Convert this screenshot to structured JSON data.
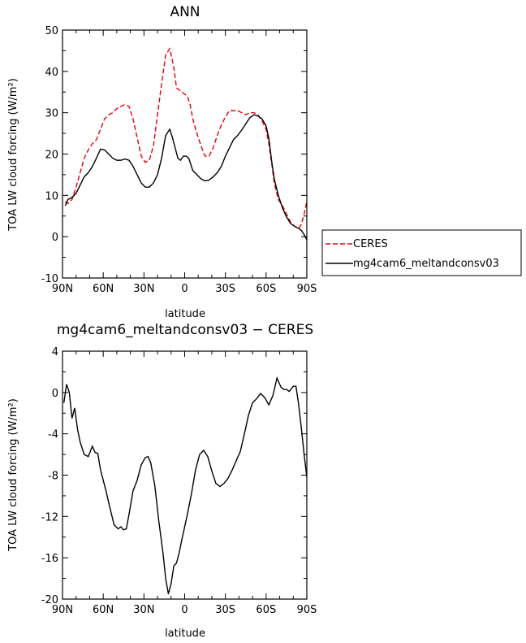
{
  "chart_data": [
    {
      "type": "line",
      "title": "ANN",
      "xlabel": "latitude",
      "ylabel": "TOA LW cloud forcing (W/m²)",
      "xlim": [
        90,
        -90
      ],
      "ylim": [
        -10,
        50
      ],
      "x_tick_labels": [
        "90N",
        "60N",
        "30N",
        "0",
        "30S",
        "60S",
        "90S"
      ],
      "y_tick_labels": [
        "-10",
        "0",
        "10",
        "20",
        "30",
        "40",
        "50"
      ],
      "legend_position": "right",
      "series": [
        {
          "name": "CERES",
          "color": "#e8000b",
          "dash": "dashed",
          "x": [
            88,
            86,
            83,
            80,
            77,
            74,
            71,
            68,
            65,
            62,
            59,
            56,
            53,
            50,
            47,
            44,
            41,
            38,
            35,
            32,
            29,
            26,
            23,
            20,
            17,
            14,
            11,
            8,
            6,
            4,
            2,
            0,
            -2,
            -4,
            -6,
            -9,
            -12,
            -15,
            -18,
            -21,
            -24,
            -27,
            -30,
            -33,
            -36,
            -39,
            -42,
            -45,
            -48,
            -51,
            -54,
            -57,
            -60,
            -62,
            -64,
            -66,
            -69,
            -72,
            -75,
            -78,
            -81,
            -84,
            -86,
            -88,
            -90
          ],
          "y": [
            8.5,
            8.0,
            9.0,
            12.0,
            15.5,
            19.0,
            21.0,
            22.5,
            23.5,
            26.0,
            28.5,
            29.5,
            30.0,
            31.0,
            31.5,
            32.0,
            31.5,
            28.5,
            24.0,
            19.5,
            18.0,
            18.5,
            22.0,
            29.5,
            37.0,
            44.0,
            45.5,
            41.0,
            36.0,
            35.5,
            35.0,
            34.5,
            34.0,
            32.0,
            28.5,
            25.0,
            22.0,
            19.5,
            19.5,
            21.5,
            24.5,
            27.0,
            29.0,
            30.5,
            30.5,
            30.5,
            30.0,
            29.5,
            30.0,
            30.0,
            29.5,
            28.0,
            26.0,
            22.5,
            18.0,
            13.0,
            9.0,
            7.5,
            5.5,
            3.5,
            2.5,
            2.0,
            3.0,
            5.5,
            8.5
          ]
        },
        {
          "name": "mg4cam6_meltandconsv03",
          "color": "#000000",
          "dash": "solid",
          "x": [
            88,
            86,
            83,
            80,
            77,
            74,
            71,
            68,
            65,
            62,
            59,
            56,
            53,
            50,
            47,
            44,
            41,
            38,
            35,
            32,
            29,
            26,
            23,
            20,
            17,
            14,
            11,
            9,
            7,
            5,
            3,
            1,
            -1,
            -3,
            -6,
            -9,
            -12,
            -15,
            -18,
            -21,
            -24,
            -27,
            -30,
            -33,
            -36,
            -39,
            -42,
            -45,
            -48,
            -51,
            -54,
            -57,
            -60,
            -62,
            -64,
            -66,
            -69,
            -72,
            -75,
            -78,
            -81,
            -84,
            -86,
            -88,
            -90
          ],
          "y": [
            7.5,
            9.0,
            9.5,
            10.5,
            12.5,
            14.5,
            15.5,
            17.0,
            19.0,
            21.2,
            21.0,
            20.0,
            19.0,
            18.5,
            18.5,
            18.8,
            18.5,
            17.0,
            15.0,
            13.0,
            12.0,
            12.0,
            13.0,
            15.0,
            19.0,
            24.5,
            26.0,
            24.0,
            21.5,
            19.0,
            18.5,
            19.5,
            19.5,
            19.0,
            16.0,
            15.0,
            14.0,
            13.5,
            13.7,
            14.5,
            15.5,
            17.0,
            19.5,
            21.5,
            23.5,
            24.5,
            25.8,
            27.3,
            28.8,
            29.5,
            29.2,
            28.5,
            26.8,
            23.8,
            18.5,
            14.0,
            10.0,
            7.0,
            4.8,
            3.2,
            2.5,
            2.0,
            1.5,
            0.5,
            -0.8
          ]
        }
      ]
    },
    {
      "type": "line",
      "title": "mg4cam6_meltandconsv03 − CERES",
      "xlabel": "latitude",
      "ylabel": "TOA LW cloud forcing (W/m²)",
      "xlim": [
        90,
        -90
      ],
      "ylim": [
        -20,
        4
      ],
      "x_tick_labels": [
        "90N",
        "60N",
        "30N",
        "0",
        "30S",
        "60S",
        "90S"
      ],
      "y_tick_labels": [
        "-20",
        "-16",
        "-12",
        "-8",
        "-4",
        "0",
        "4"
      ],
      "series": [
        {
          "color": "#000000",
          "dash": "solid",
          "x": [
            89,
            87,
            85,
            83,
            81,
            79,
            77,
            74,
            71,
            68,
            66,
            64,
            62,
            60,
            58,
            55,
            52,
            49,
            47,
            45,
            43,
            41,
            38,
            35,
            32,
            29,
            27,
            25,
            22,
            19,
            16,
            14,
            12,
            10,
            8,
            6,
            4,
            2,
            0,
            -2,
            -5,
            -8,
            -11,
            -14,
            -17,
            -20,
            -23,
            -26,
            -29,
            -32,
            -35,
            -38,
            -41,
            -44,
            -47,
            -50,
            -53,
            -56,
            -59,
            -62,
            -65,
            -68,
            -71,
            -73,
            -75,
            -77,
            -80,
            -82,
            -84,
            -86,
            -88,
            -90
          ],
          "y": [
            -1.0,
            0.8,
            0.0,
            -2.5,
            -1.5,
            -3.5,
            -4.8,
            -6.0,
            -6.2,
            -5.2,
            -5.8,
            -5.9,
            -7.5,
            -8.5,
            -9.5,
            -11.2,
            -12.8,
            -13.2,
            -13.0,
            -13.3,
            -13.2,
            -11.8,
            -9.5,
            -8.5,
            -7.0,
            -6.3,
            -6.2,
            -6.8,
            -9.0,
            -12.5,
            -15.5,
            -18.0,
            -19.5,
            -18.5,
            -16.8,
            -16.5,
            -15.5,
            -14.2,
            -13.0,
            -11.8,
            -9.8,
            -7.5,
            -6.0,
            -5.6,
            -6.2,
            -7.6,
            -8.8,
            -9.1,
            -8.8,
            -8.3,
            -7.5,
            -6.6,
            -5.7,
            -4.0,
            -2.2,
            -1.0,
            -0.6,
            -0.1,
            -0.5,
            -1.2,
            -0.3,
            1.4,
            0.5,
            0.3,
            0.3,
            0.1,
            0.6,
            0.6,
            -1.2,
            -3.5,
            -6.0,
            -8.2
          ]
        }
      ]
    }
  ]
}
